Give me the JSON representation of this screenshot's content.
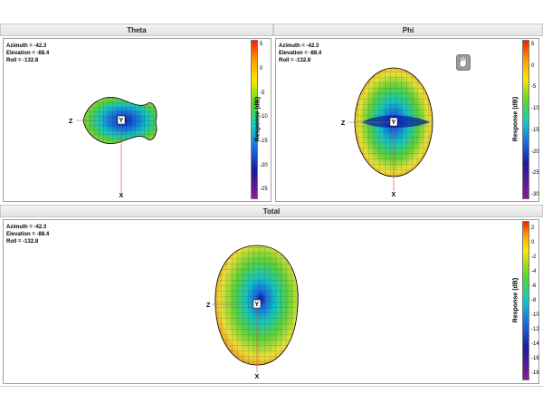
{
  "panels": {
    "theta": {
      "title": "Theta",
      "info": {
        "azimuth": "Azimuth = -42.3",
        "elevation": "Elevation = -88.4",
        "roll": "Roll = -132.8"
      },
      "axes": {
        "z": "Z",
        "y": "Y",
        "x": "X"
      },
      "colorbar": {
        "label": "Response  (dB)",
        "ticks": [
          "5",
          "0",
          "-5",
          "-10",
          "-15",
          "-20",
          "-25"
        ],
        "range": [
          -27,
          6
        ]
      }
    },
    "phi": {
      "title": "Phi",
      "info": {
        "azimuth": "Azimuth = -42.3",
        "elevation": "Elevation = -88.4",
        "roll": "Roll = -132.8"
      },
      "axes": {
        "z": "Z",
        "y": "Y",
        "x": "X"
      },
      "colorbar": {
        "label": "Response  (dB)",
        "ticks": [
          "5",
          "0",
          "-5",
          "-10",
          "-15",
          "-20",
          "-25",
          "-30"
        ],
        "range": [
          -31,
          6
        ]
      }
    },
    "total": {
      "title": "Total",
      "info": {
        "azimuth": "Azimuth = -42.3",
        "elevation": "Elevation = -88.4",
        "roll": "Roll = -132.8"
      },
      "axes": {
        "z": "Z",
        "y": "Y",
        "x": "X"
      },
      "colorbar": {
        "label": "Response (dB)",
        "ticks": [
          "2",
          "0",
          "-2",
          "-4",
          "-6",
          "-8",
          "-10",
          "-12",
          "-14",
          "-16",
          "-18"
        ],
        "range": [
          -19,
          3
        ]
      }
    }
  },
  "icons": {
    "grab": "hand-icon"
  }
}
